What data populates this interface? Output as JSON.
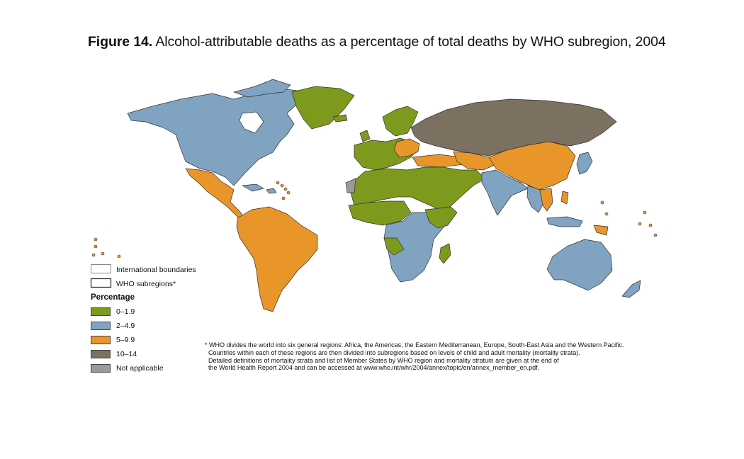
{
  "figure": {
    "label": "Figure 14.",
    "title": "Alcohol-attributable deaths as a percentage of total deaths by WHO subregion, 2004"
  },
  "colors": {
    "band_0_1_9": "#7d9a1d",
    "band_2_4_9": "#7fa3c1",
    "band_5_9_9": "#e8952a",
    "band_10_14": "#7c7060",
    "not_applicable": "#9a9a9a",
    "boundary": "#333333"
  },
  "legend": {
    "boundary_items": [
      {
        "name": "international-boundaries",
        "label": "International boundaries"
      },
      {
        "name": "who-subregions",
        "label": "WHO subregions*"
      }
    ],
    "heading": "Percentage",
    "items": [
      {
        "name": "band-0-1-9",
        "label": "0–1.9",
        "color": "#7d9a1d"
      },
      {
        "name": "band-2-4-9",
        "label": "2–4.9",
        "color": "#7fa3c1"
      },
      {
        "name": "band-5-9-9",
        "label": "5–9.9",
        "color": "#e8952a"
      },
      {
        "name": "band-10-14",
        "label": "10–14",
        "color": "#7c7060"
      },
      {
        "name": "not-applicable",
        "label": "Not applicable",
        "color": "#9a9a9a"
      }
    ]
  },
  "footnote": {
    "lines": [
      "* WHO divides the world into six general regions: Africa, the Americas, the Eastern Mediterranean, Europe, South-East Asia and the Western Pacific.",
      "  Countries within each of these regions are then divided into subregions based on levels of child and adult mortality (mortality strata).",
      "  Detailed definitions of mortality strata and list of Member States by WHO region and mortality stratum are given at the end of",
      "  the World Health Report 2004 and can be accessed at www.who.int/whr/2004/annex/topic/en/annex_member_en.pdf."
    ]
  }
}
